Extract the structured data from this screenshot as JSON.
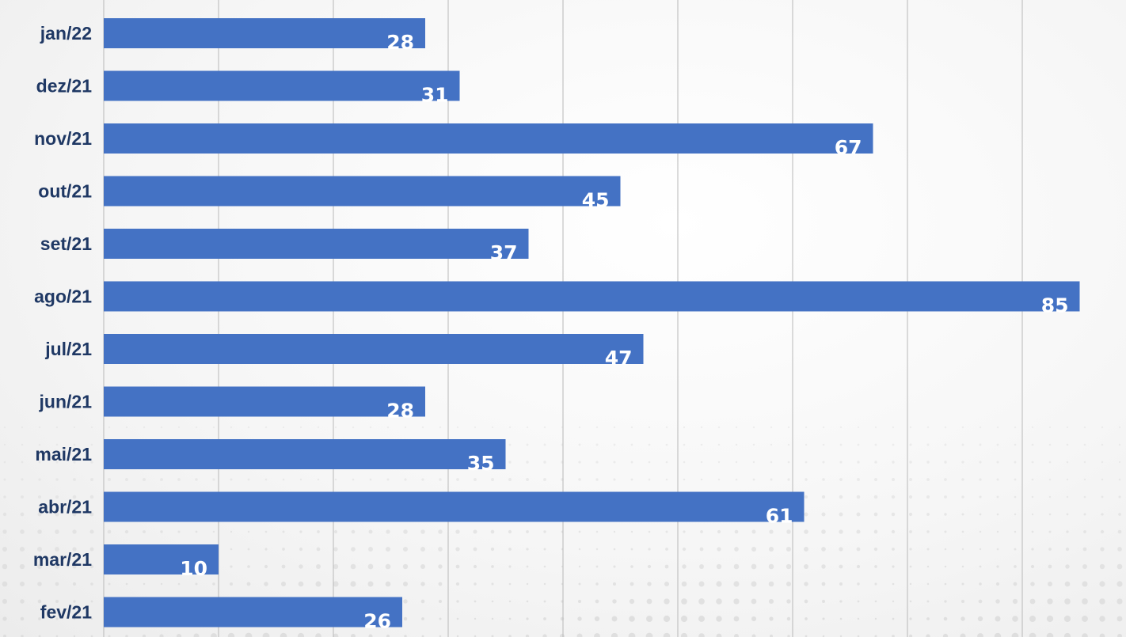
{
  "chart_data": {
    "type": "bar",
    "orientation": "horizontal",
    "categories": [
      "jan/22",
      "dez/21",
      "nov/21",
      "out/21",
      "set/21",
      "ago/21",
      "jul/21",
      "jun/21",
      "mai/21",
      "abr/21",
      "mar/21",
      "fev/21"
    ],
    "values": [
      28,
      31,
      67,
      45,
      37,
      85,
      47,
      28,
      35,
      61,
      10,
      26
    ],
    "title": "",
    "xlabel": "",
    "ylabel": "",
    "xlim": [
      0,
      90
    ],
    "gridlines": "vertical",
    "grid_step": 10,
    "data_labels": "inside-end",
    "legend": "none",
    "colors": {
      "bar": "#4472c4",
      "category_label": "#1f3864",
      "data_label": "#ffffff",
      "grid": "#b8b8b8",
      "background": "#f4f4f4"
    }
  }
}
